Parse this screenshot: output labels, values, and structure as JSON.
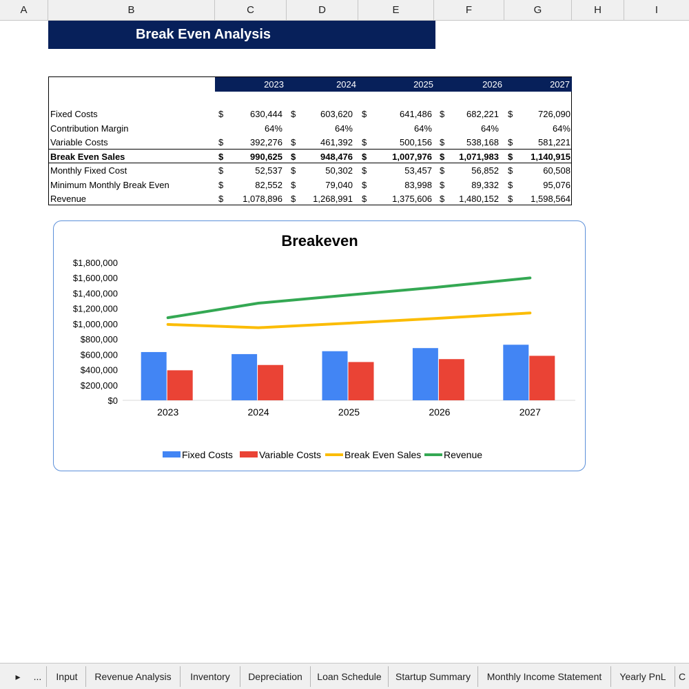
{
  "columns": [
    "A",
    "B",
    "C",
    "D",
    "E",
    "F",
    "G",
    "H",
    "I"
  ],
  "title": "Break Even Analysis",
  "table": {
    "years": [
      "2023",
      "2024",
      "2025",
      "2026",
      "2027"
    ],
    "currency": "$",
    "rows": [
      {
        "label": "Fixed Costs",
        "currency": true,
        "bold": false,
        "values": [
          "630,444",
          "603,620",
          "641,486",
          "682,221",
          "726,090"
        ]
      },
      {
        "label": "Contribution Margin",
        "currency": false,
        "bold": false,
        "values": [
          "64%",
          "64%",
          "64%",
          "64%",
          "64%"
        ]
      },
      {
        "label": "Variable Costs",
        "currency": true,
        "bold": false,
        "values": [
          "392,276",
          "461,392",
          "500,156",
          "538,168",
          "581,221"
        ]
      },
      {
        "label": "Break Even Sales",
        "currency": true,
        "bold": true,
        "values": [
          "990,625",
          "948,476",
          "1,007,976",
          "1,071,983",
          "1,140,915"
        ]
      },
      {
        "label": "Monthly Fixed Cost",
        "currency": true,
        "bold": false,
        "values": [
          "52,537",
          "50,302",
          "53,457",
          "56,852",
          "60,508"
        ]
      },
      {
        "label": "Minimum Monthly Break Even",
        "currency": true,
        "bold": false,
        "values": [
          "82,552",
          "79,040",
          "83,998",
          "89,332",
          "95,076"
        ]
      },
      {
        "label": "Revenue",
        "currency": true,
        "bold": false,
        "values": [
          "1,078,896",
          "1,268,991",
          "1,375,606",
          "1,480,152",
          "1,598,564"
        ]
      }
    ]
  },
  "chart_data": {
    "type": "bar",
    "title": "Breakeven",
    "categories": [
      "2023",
      "2024",
      "2025",
      "2026",
      "2027"
    ],
    "ylim": [
      0,
      1800000
    ],
    "yticks": [
      "$0",
      "$200,000",
      "$400,000",
      "$600,000",
      "$800,000",
      "$1,000,000",
      "$1,200,000",
      "$1,400,000",
      "$1,600,000",
      "$1,800,000"
    ],
    "ytick_values": [
      0,
      200000,
      400000,
      600000,
      800000,
      1000000,
      1200000,
      1400000,
      1600000,
      1800000
    ],
    "legend_position": "bottom",
    "series": [
      {
        "name": "Fixed Costs",
        "kind": "bar",
        "color": "#4285f4",
        "values": [
          630444,
          603620,
          641486,
          682221,
          726090
        ]
      },
      {
        "name": "Variable Costs",
        "kind": "bar",
        "color": "#ea4335",
        "values": [
          392276,
          461392,
          500156,
          538168,
          581221
        ]
      },
      {
        "name": "Break Even Sales",
        "kind": "line",
        "color": "#fbbc04",
        "values": [
          990625,
          948476,
          1007976,
          1071983,
          1140915
        ]
      },
      {
        "name": "Revenue",
        "kind": "line",
        "color": "#34a853",
        "values": [
          1078896,
          1268991,
          1375606,
          1480152,
          1598564
        ]
      }
    ]
  },
  "sheet_tabs": {
    "nav_next": "▸",
    "nav_more": "...",
    "tabs": [
      "Input",
      "Revenue Analysis",
      "Inventory",
      "Depreciation",
      "Loan Schedule",
      "Startup Summary",
      "Monthly Income Statement",
      "Yearly PnL",
      "C"
    ]
  }
}
